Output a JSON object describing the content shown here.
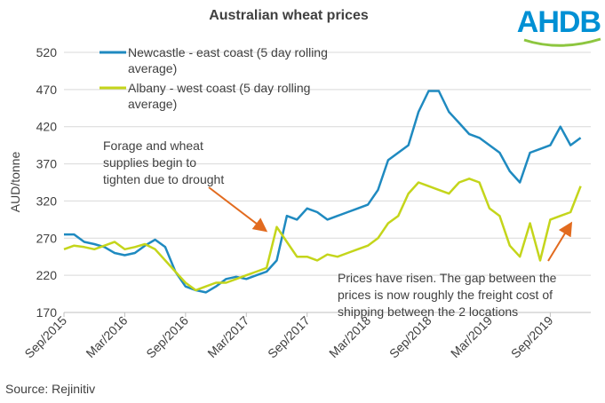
{
  "chart_data": {
    "type": "line",
    "title": "Australian wheat prices",
    "logo": "AHDB",
    "y_label": "AUD/tonne",
    "source": "Source: Rejinitiv",
    "x": [
      "2015-09",
      "2015-10",
      "2015-11",
      "2015-12",
      "2016-01",
      "2016-02",
      "2016-03",
      "2016-04",
      "2016-05",
      "2016-06",
      "2016-07",
      "2016-08",
      "2016-09",
      "2016-10",
      "2016-11",
      "2016-12",
      "2017-01",
      "2017-02",
      "2017-03",
      "2017-04",
      "2017-05",
      "2017-06",
      "2017-07",
      "2017-08",
      "2017-09",
      "2017-10",
      "2017-11",
      "2017-12",
      "2018-01",
      "2018-02",
      "2018-03",
      "2018-04",
      "2018-05",
      "2018-06",
      "2018-07",
      "2018-08",
      "2018-09",
      "2018-10",
      "2018-11",
      "2018-12",
      "2019-01",
      "2019-02",
      "2019-03",
      "2019-04",
      "2019-05",
      "2019-06",
      "2019-07",
      "2019-08",
      "2019-09",
      "2019-10",
      "2019-11",
      "2019-12"
    ],
    "series": [
      {
        "name": "Newcastle - east coast (5 day rolling average)",
        "color": "#1f8ac0",
        "values": [
          275,
          275,
          265,
          262,
          258,
          250,
          247,
          250,
          260,
          268,
          258,
          225,
          205,
          200,
          197,
          205,
          215,
          218,
          215,
          220,
          225,
          240,
          300,
          295,
          310,
          305,
          295,
          300,
          305,
          310,
          315,
          335,
          375,
          385,
          395,
          440,
          468,
          468,
          440,
          425,
          410,
          405,
          395,
          385,
          360,
          345,
          385,
          390,
          395,
          420,
          395,
          405
        ]
      },
      {
        "name": "Albany - west coast (5 day rolling average)",
        "color": "#c4d51b",
        "values": [
          255,
          260,
          258,
          255,
          260,
          265,
          255,
          258,
          262,
          255,
          240,
          225,
          210,
          200,
          205,
          210,
          210,
          215,
          220,
          225,
          230,
          285,
          265,
          245,
          245,
          240,
          248,
          245,
          250,
          255,
          260,
          270,
          290,
          300,
          330,
          345,
          340,
          335,
          330,
          345,
          350,
          345,
          310,
          300,
          260,
          245,
          290,
          240,
          295,
          300,
          305,
          340
        ]
      }
    ],
    "xlim": [
      "2015-09",
      "2020-01"
    ],
    "xticks": [
      {
        "value": "2015-09",
        "label": "Sep/2015"
      },
      {
        "value": "2016-03",
        "label": "Mar/2016"
      },
      {
        "value": "2016-09",
        "label": "Sep/2016"
      },
      {
        "value": "2017-03",
        "label": "Mar/2017"
      },
      {
        "value": "2017-09",
        "label": "Sep/2017"
      },
      {
        "value": "2018-03",
        "label": "Mar/2018"
      },
      {
        "value": "2018-09",
        "label": "Sep/2018"
      },
      {
        "value": "2019-03",
        "label": "Mar/2019"
      },
      {
        "value": "2019-09",
        "label": "Sep/2019"
      }
    ],
    "ylim": [
      170,
      520
    ],
    "yticks": [
      170,
      220,
      270,
      320,
      370,
      420,
      470,
      520
    ],
    "grid": true,
    "legend": "top-left",
    "annotations": [
      {
        "text": "Forage and wheat supplies begin to tighten due to drought",
        "color": "#e26b1f"
      },
      {
        "text": "Prices have risen. The gap between the prices is now roughly the freight cost of shipping between the 2 locations",
        "color": "#e26b1f"
      }
    ]
  }
}
